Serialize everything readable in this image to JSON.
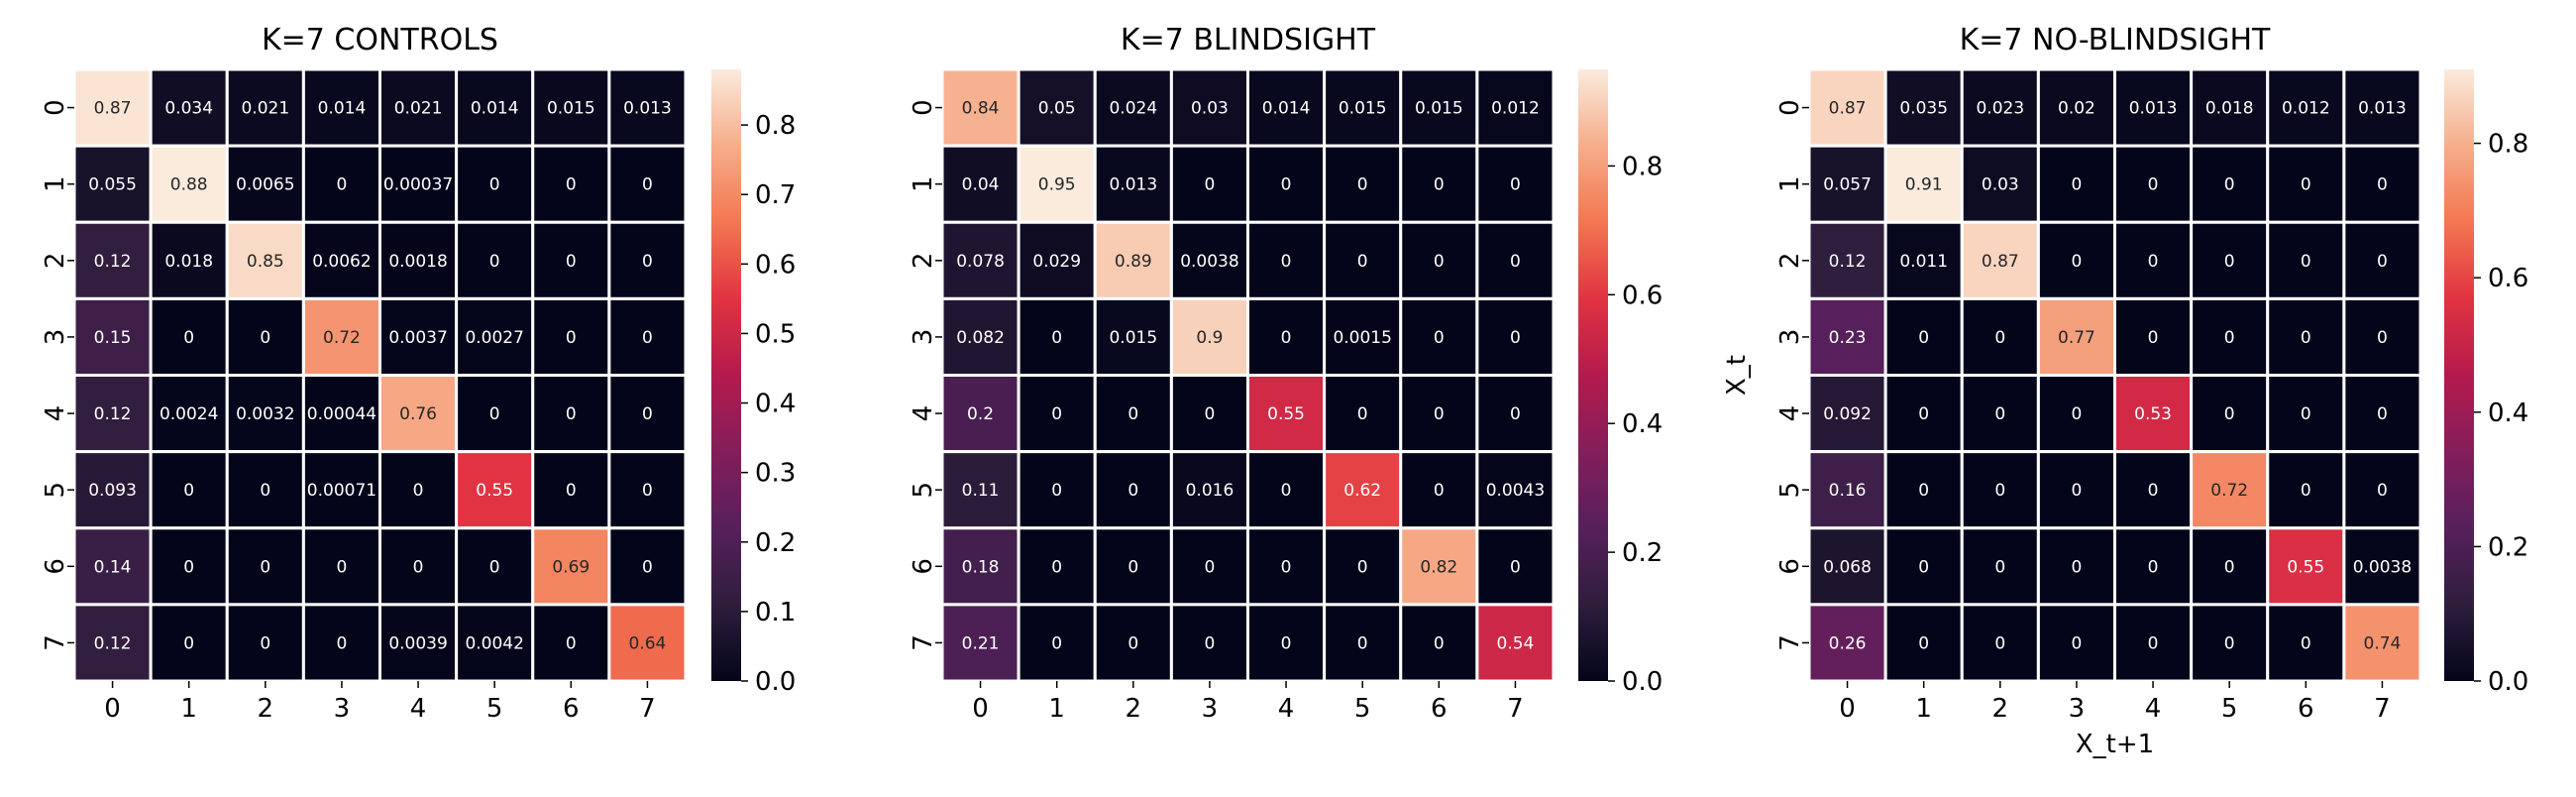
{
  "chart_data": [
    {
      "type": "heatmap",
      "title": "K=7 CONTROLS",
      "xlabel": "",
      "ylabel": "",
      "x_tick_labels": [
        "0",
        "1",
        "2",
        "3",
        "4",
        "5",
        "6",
        "7"
      ],
      "y_tick_labels": [
        "0",
        "1",
        "2",
        "3",
        "4",
        "5",
        "6",
        "7"
      ],
      "colorbar_ticks": [
        "0.0",
        "0.1",
        "0.2",
        "0.3",
        "0.4",
        "0.5",
        "0.6",
        "0.7",
        "0.8"
      ],
      "vmin": 0.0,
      "vmax": 0.88,
      "colormap": "rocket",
      "values": [
        [
          0.87,
          0.034,
          0.021,
          0.014,
          0.021,
          0.014,
          0.015,
          0.013
        ],
        [
          0.055,
          0.88,
          0.0065,
          0,
          0.00037,
          0,
          0,
          0
        ],
        [
          0.12,
          0.018,
          0.85,
          0.0062,
          0.0018,
          0,
          0,
          0
        ],
        [
          0.15,
          0,
          0,
          0.72,
          0.0037,
          0.0027,
          0,
          0
        ],
        [
          0.12,
          0.0024,
          0.0032,
          0.00044,
          0.76,
          0,
          0,
          0
        ],
        [
          0.093,
          0,
          0,
          0.00071,
          0,
          0.55,
          0,
          0
        ],
        [
          0.14,
          0,
          0,
          0,
          0,
          0,
          0.69,
          0
        ],
        [
          0.12,
          0,
          0,
          0,
          0.0039,
          0.0042,
          0,
          0.64
        ]
      ],
      "labels": [
        [
          "0.87",
          "0.034",
          "0.021",
          "0.014",
          "0.021",
          "0.014",
          "0.015",
          "0.013"
        ],
        [
          "0.055",
          "0.88",
          "0.0065",
          "0",
          "0.00037",
          "0",
          "0",
          "0"
        ],
        [
          "0.12",
          "0.018",
          "0.85",
          "0.0062",
          "0.0018",
          "0",
          "0",
          "0"
        ],
        [
          "0.15",
          "0",
          "0",
          "0.72",
          "0.0037",
          "0.0027",
          "0",
          "0"
        ],
        [
          "0.12",
          "0.0024",
          "0.0032",
          "0.00044",
          "0.76",
          "0",
          "0",
          "0"
        ],
        [
          "0.093",
          "0",
          "0",
          "0.00071",
          "0",
          "0.55",
          "0",
          "0"
        ],
        [
          "0.14",
          "0",
          "0",
          "0",
          "0",
          "0",
          "0.69",
          "0"
        ],
        [
          "0.12",
          "0",
          "0",
          "0",
          "0.0039",
          "0.0042",
          "0",
          "0.64"
        ]
      ]
    },
    {
      "type": "heatmap",
      "title": "K=7 BLINDSIGHT",
      "xlabel": "",
      "ylabel": "",
      "x_tick_labels": [
        "0",
        "1",
        "2",
        "3",
        "4",
        "5",
        "6",
        "7"
      ],
      "y_tick_labels": [
        "0",
        "1",
        "2",
        "3",
        "4",
        "5",
        "6",
        "7"
      ],
      "colorbar_ticks": [
        "0.0",
        "0.2",
        "0.4",
        "0.6",
        "0.8"
      ],
      "vmin": 0.0,
      "vmax": 0.95,
      "colormap": "rocket",
      "values": [
        [
          0.84,
          0.05,
          0.024,
          0.03,
          0.014,
          0.015,
          0.015,
          0.012
        ],
        [
          0.04,
          0.95,
          0.013,
          0,
          0,
          0,
          0,
          0
        ],
        [
          0.078,
          0.029,
          0.89,
          0.0038,
          0,
          0,
          0,
          0
        ],
        [
          0.082,
          0,
          0.015,
          0.9,
          0,
          0.0015,
          0,
          0
        ],
        [
          0.2,
          0,
          0,
          0,
          0.55,
          0,
          0,
          0
        ],
        [
          0.11,
          0,
          0,
          0.016,
          0,
          0.62,
          0,
          0.0043
        ],
        [
          0.18,
          0,
          0,
          0,
          0,
          0,
          0.82,
          0
        ],
        [
          0.21,
          0,
          0,
          0,
          0,
          0,
          0,
          0.54
        ]
      ],
      "labels": [
        [
          "0.84",
          "0.05",
          "0.024",
          "0.03",
          "0.014",
          "0.015",
          "0.015",
          "0.012"
        ],
        [
          "0.04",
          "0.95",
          "0.013",
          "0",
          "0",
          "0",
          "0",
          "0"
        ],
        [
          "0.078",
          "0.029",
          "0.89",
          "0.0038",
          "0",
          "0",
          "0",
          "0"
        ],
        [
          "0.082",
          "0",
          "0.015",
          "0.9",
          "0",
          "0.0015",
          "0",
          "0"
        ],
        [
          "0.2",
          "0",
          "0",
          "0",
          "0.55",
          "0",
          "0",
          "0"
        ],
        [
          "0.11",
          "0",
          "0",
          "0.016",
          "0",
          "0.62",
          "0",
          "0.0043"
        ],
        [
          "0.18",
          "0",
          "0",
          "0",
          "0",
          "0",
          "0.82",
          "0"
        ],
        [
          "0.21",
          "0",
          "0",
          "0",
          "0",
          "0",
          "0",
          "0.54"
        ]
      ]
    },
    {
      "type": "heatmap",
      "title": "K=7 NO-BLINDSIGHT",
      "xlabel": "X_t+1",
      "ylabel": "X_t",
      "x_tick_labels": [
        "0",
        "1",
        "2",
        "3",
        "4",
        "5",
        "6",
        "7"
      ],
      "y_tick_labels": [
        "0",
        "1",
        "2",
        "3",
        "4",
        "5",
        "6",
        "7"
      ],
      "colorbar_ticks": [
        "0.0",
        "0.2",
        "0.4",
        "0.6",
        "0.8"
      ],
      "vmin": 0.0,
      "vmax": 0.91,
      "colormap": "rocket",
      "values": [
        [
          0.87,
          0.035,
          0.023,
          0.02,
          0.013,
          0.018,
          0.012,
          0.013
        ],
        [
          0.057,
          0.91,
          0.03,
          0,
          0,
          0,
          0,
          0
        ],
        [
          0.12,
          0.011,
          0.87,
          0,
          0,
          0,
          0,
          0
        ],
        [
          0.23,
          0,
          0,
          0.77,
          0,
          0,
          0,
          0
        ],
        [
          0.092,
          0,
          0,
          0,
          0.53,
          0,
          0,
          0
        ],
        [
          0.16,
          0,
          0,
          0,
          0,
          0.72,
          0,
          0
        ],
        [
          0.068,
          0,
          0,
          0,
          0,
          0,
          0.55,
          0.0038
        ],
        [
          0.26,
          0,
          0,
          0,
          0,
          0,
          0,
          0.74
        ]
      ],
      "labels": [
        [
          "0.87",
          "0.035",
          "0.023",
          "0.02",
          "0.013",
          "0.018",
          "0.012",
          "0.013"
        ],
        [
          "0.057",
          "0.91",
          "0.03",
          "0",
          "0",
          "0",
          "0",
          "0"
        ],
        [
          "0.12",
          "0.011",
          "0.87",
          "0",
          "0",
          "0",
          "0",
          "0"
        ],
        [
          "0.23",
          "0",
          "0",
          "0.77",
          "0",
          "0",
          "0",
          "0"
        ],
        [
          "0.092",
          "0",
          "0",
          "0",
          "0.53",
          "0",
          "0",
          "0"
        ],
        [
          "0.16",
          "0",
          "0",
          "0",
          "0",
          "0.72",
          "0",
          "0"
        ],
        [
          "0.068",
          "0",
          "0",
          "0",
          "0",
          "0",
          "0.55",
          "0.0038"
        ],
        [
          "0.26",
          "0",
          "0",
          "0",
          "0",
          "0",
          "0",
          "0.74"
        ]
      ]
    }
  ]
}
